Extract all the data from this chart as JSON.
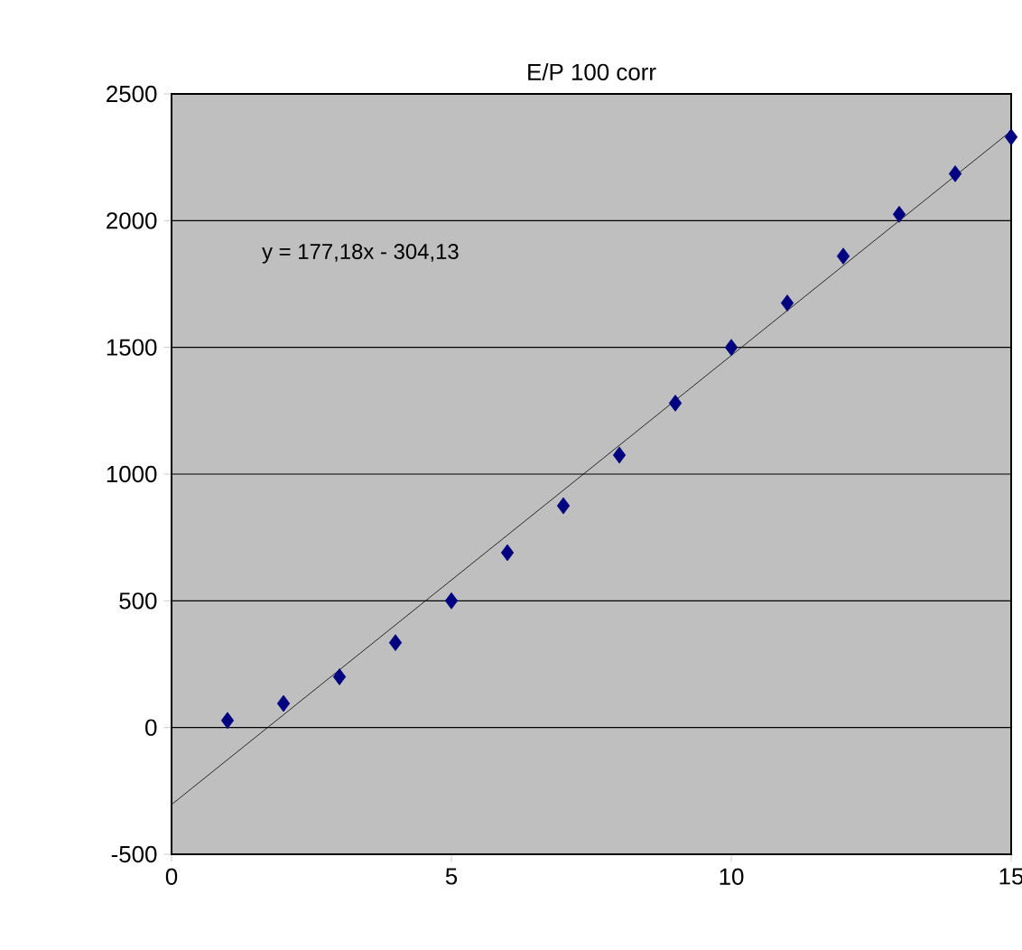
{
  "chart_data": {
    "type": "scatter",
    "title": "E/P 100 corr",
    "x": [
      1,
      2,
      3,
      4,
      5,
      6,
      7,
      8,
      9,
      10,
      11,
      12,
      13,
      14,
      15
    ],
    "series": [
      {
        "color": "#000080",
        "marker": "diamond",
        "values": [
          28,
          95,
          200,
          335,
          500,
          690,
          875,
          1075,
          1280,
          1500,
          1675,
          1860,
          2025,
          2185,
          2330
        ]
      },
      {
        "type": "line",
        "color": "#000000",
        "marker": "none",
        "line_style": "solid",
        "x": [
          0,
          15
        ],
        "values": [
          -304,
          2354
        ]
      }
    ],
    "annotations": [
      "y = 177,18x - 304,13"
    ],
    "xlim": [
      0,
      15
    ],
    "xticks": [
      0,
      5,
      10,
      15
    ],
    "ylim": [
      -500,
      2500
    ],
    "yticks": [
      -500,
      0,
      500,
      1000,
      1500,
      2000,
      2500
    ],
    "grid": "y"
  }
}
